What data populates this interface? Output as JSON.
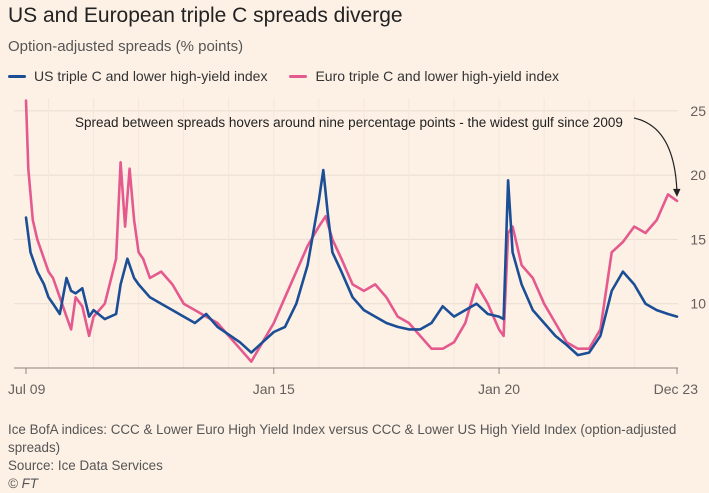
{
  "title": "US and European triple C spreads diverge",
  "subtitle": "Option-adjusted spreads (% points)",
  "colors": {
    "us": "#1c4e96",
    "euro": "#e55a8e",
    "grid": "#e9dcd0",
    "text": "#66605c"
  },
  "chart_data": {
    "type": "line",
    "title": "US and European triple C spreads diverge",
    "ylabel": "Option-adjusted spreads (% points)",
    "ylim": [
      5,
      26
    ],
    "xlim": [
      2009.5,
      2023.95
    ],
    "yticks": [
      10,
      15,
      20,
      25
    ],
    "ytick_labels": [
      "10",
      "15",
      "20",
      "25"
    ],
    "xticks": [
      2009.5,
      2015.0,
      2020.0,
      2023.95
    ],
    "xtick_labels": [
      "Jul 09",
      "Jan 15",
      "Jan 20",
      "Dec 23"
    ],
    "legend_position": "top-left",
    "annotation": {
      "text": "Spread between spreads hovers around nine percentage points - the widest gulf since 2009",
      "target": [
        2023.95,
        18.0
      ]
    },
    "series": [
      {
        "name": "US triple C and lower high-yield index",
        "color": "#1c4e96",
        "x": [
          2009.5,
          2009.6,
          2009.75,
          2009.9,
          2010.0,
          2010.1,
          2010.25,
          2010.4,
          2010.5,
          2010.6,
          2010.75,
          2010.9,
          2011.0,
          2011.25,
          2011.5,
          2011.6,
          2011.75,
          2011.9,
          2012.0,
          2012.25,
          2012.5,
          2012.75,
          2013.0,
          2013.25,
          2013.5,
          2013.75,
          2014.0,
          2014.25,
          2014.5,
          2014.75,
          2015.0,
          2015.25,
          2015.5,
          2015.75,
          2016.0,
          2016.1,
          2016.2,
          2016.3,
          2016.5,
          2016.75,
          2017.0,
          2017.25,
          2017.5,
          2017.75,
          2018.0,
          2018.25,
          2018.5,
          2018.75,
          2019.0,
          2019.25,
          2019.5,
          2019.75,
          2020.0,
          2020.1,
          2020.2,
          2020.3,
          2020.5,
          2020.75,
          2021.0,
          2021.25,
          2021.5,
          2021.75,
          2022.0,
          2022.25,
          2022.5,
          2022.75,
          2023.0,
          2023.25,
          2023.5,
          2023.75,
          2023.95
        ],
        "values": [
          16.7,
          14.0,
          12.5,
          11.5,
          10.5,
          10.0,
          9.2,
          12.0,
          11.0,
          10.8,
          11.2,
          9.0,
          9.5,
          8.8,
          9.2,
          11.5,
          13.5,
          12.0,
          11.5,
          10.5,
          10.0,
          9.5,
          9.0,
          8.5,
          9.2,
          8.2,
          7.6,
          7.0,
          6.2,
          7.0,
          7.8,
          8.2,
          10.0,
          13.0,
          18.0,
          20.4,
          17.0,
          14.0,
          12.5,
          10.5,
          9.5,
          9.0,
          8.5,
          8.2,
          8.0,
          8.0,
          8.5,
          9.8,
          9.0,
          9.5,
          10.0,
          9.2,
          9.0,
          8.8,
          19.6,
          14.0,
          11.5,
          9.5,
          8.5,
          7.5,
          6.8,
          6.0,
          6.2,
          7.5,
          11.0,
          12.5,
          11.5,
          10.0,
          9.5,
          9.2,
          9.0
        ]
      },
      {
        "name": "Euro triple C and lower high-yield index",
        "color": "#e55a8e",
        "x": [
          2009.5,
          2009.55,
          2009.65,
          2009.75,
          2009.9,
          2010.0,
          2010.1,
          2010.25,
          2010.4,
          2010.5,
          2010.6,
          2010.75,
          2010.9,
          2011.0,
          2011.25,
          2011.5,
          2011.6,
          2011.7,
          2011.8,
          2011.9,
          2012.0,
          2012.1,
          2012.25,
          2012.5,
          2012.75,
          2013.0,
          2013.25,
          2013.5,
          2013.75,
          2014.0,
          2014.25,
          2014.5,
          2014.75,
          2015.0,
          2015.25,
          2015.5,
          2015.75,
          2016.0,
          2016.15,
          2016.3,
          2016.5,
          2016.75,
          2017.0,
          2017.25,
          2017.5,
          2017.75,
          2018.0,
          2018.25,
          2018.5,
          2018.75,
          2019.0,
          2019.25,
          2019.5,
          2019.75,
          2020.0,
          2020.1,
          2020.2,
          2020.3,
          2020.5,
          2020.75,
          2021.0,
          2021.25,
          2021.5,
          2021.75,
          2022.0,
          2022.25,
          2022.5,
          2022.75,
          2023.0,
          2023.25,
          2023.5,
          2023.75,
          2023.95
        ],
        "values": [
          25.8,
          20.5,
          16.5,
          15.0,
          13.5,
          12.5,
          12.0,
          10.5,
          9.0,
          8.0,
          10.5,
          9.8,
          7.5,
          9.0,
          10.0,
          13.5,
          21.0,
          16.0,
          20.5,
          16.5,
          14.0,
          13.5,
          12.0,
          12.5,
          11.5,
          10.0,
          9.5,
          9.0,
          8.5,
          7.5,
          6.5,
          5.5,
          7.0,
          8.5,
          10.5,
          12.5,
          14.5,
          16.0,
          16.8,
          15.0,
          13.5,
          11.5,
          11.0,
          11.5,
          10.5,
          9.0,
          8.5,
          7.5,
          6.5,
          6.5,
          7.0,
          8.5,
          11.5,
          10.0,
          8.0,
          7.5,
          15.5,
          16.0,
          13.0,
          12.0,
          10.0,
          8.5,
          7.0,
          6.5,
          6.5,
          8.0,
          14.0,
          14.8,
          16.0,
          15.5,
          16.5,
          18.5,
          18.0
        ]
      }
    ]
  },
  "legend": {
    "us_label": "US triple C and lower high-yield index",
    "euro_label": "Euro triple C and lower high-yield index"
  },
  "footer": {
    "note": "Ice BofA indices: CCC & Lower Euro High Yield Index versus CCC & Lower US High Yield Index (option-adjusted spreads)",
    "source": "Source: Ice Data Services",
    "credit": "© FT"
  }
}
